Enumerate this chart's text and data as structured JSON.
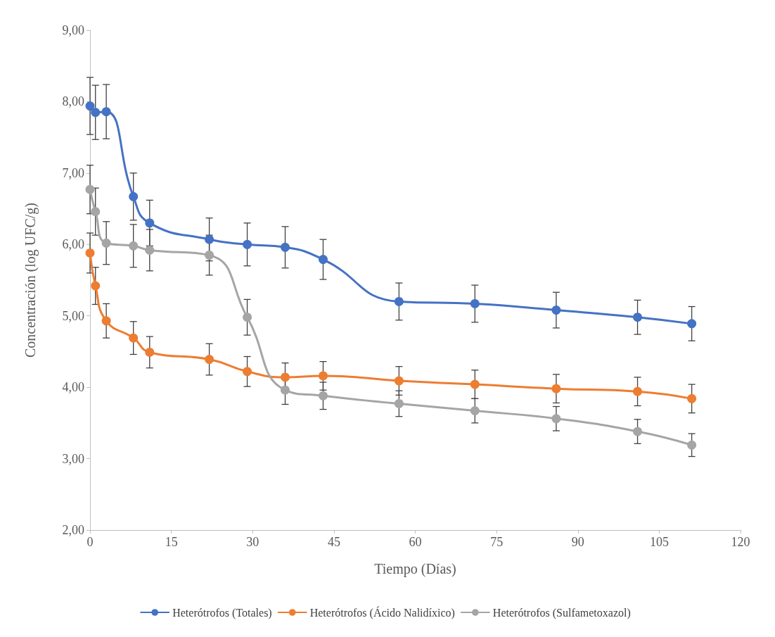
{
  "chart_data": {
    "type": "line",
    "xlabel": "Tiempo (Días)",
    "ylabel": "Concentración (log UFC/g)",
    "x": [
      0,
      1,
      3,
      8,
      11,
      22,
      29,
      36,
      43,
      57,
      71,
      86,
      101,
      111
    ],
    "xlim": [
      0,
      120
    ],
    "xticks": [
      0,
      15,
      30,
      45,
      60,
      75,
      90,
      105,
      120
    ],
    "ylim": [
      2,
      9
    ],
    "yticks": [
      {
        "value": 2,
        "label": "2,00"
      },
      {
        "value": 3,
        "label": "3,00"
      },
      {
        "value": 4,
        "label": "4,00"
      },
      {
        "value": 5,
        "label": "5,00"
      },
      {
        "value": 6,
        "label": "6,00"
      },
      {
        "value": 7,
        "label": "7,00"
      },
      {
        "value": 8,
        "label": "8,00"
      },
      {
        "value": 9,
        "label": "9,00"
      }
    ],
    "grid": false,
    "legend": "bottom",
    "marker": "circle",
    "line_style": "solid",
    "series": [
      {
        "name": "Heterótrofos (Totales)",
        "color": "#4472c4",
        "values": [
          7.94,
          7.85,
          7.86,
          6.67,
          6.3,
          6.07,
          6.0,
          5.96,
          5.79,
          5.2,
          5.17,
          5.08,
          4.98,
          4.89
        ],
        "errors": [
          0.4,
          0.38,
          0.38,
          0.33,
          0.32,
          0.3,
          0.3,
          0.29,
          0.28,
          0.26,
          0.26,
          0.25,
          0.24,
          0.24
        ]
      },
      {
        "name": "Heterótrofos (Ácido Nalidíxico)",
        "color": "#ed7d31",
        "values": [
          5.88,
          5.42,
          4.93,
          4.69,
          4.49,
          4.39,
          4.22,
          4.14,
          4.16,
          4.09,
          4.04,
          3.98,
          3.94,
          3.84
        ],
        "errors": [
          0.28,
          0.26,
          0.24,
          0.23,
          0.22,
          0.22,
          0.21,
          0.2,
          0.2,
          0.2,
          0.2,
          0.2,
          0.2,
          0.2
        ]
      },
      {
        "name": "Heterótrofos (Sulfametoxazol)",
        "color": "#a5a5a5",
        "values": [
          6.77,
          6.46,
          6.02,
          5.98,
          5.92,
          5.85,
          4.98,
          3.96,
          3.88,
          3.77,
          3.67,
          3.56,
          3.38,
          3.19
        ],
        "errors": [
          0.34,
          0.33,
          0.3,
          0.3,
          0.29,
          0.28,
          0.25,
          0.2,
          0.19,
          0.18,
          0.17,
          0.17,
          0.17,
          0.16
        ]
      }
    ]
  }
}
